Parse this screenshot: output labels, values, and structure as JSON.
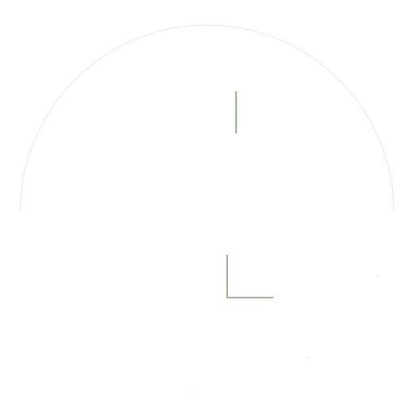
{
  "colors": {
    "background": "#ffffff",
    "circle_outline": "#e6e6e6",
    "marks": "#4f8a45",
    "specks": "#cfcfcf"
  },
  "icons": {
    "circle": "circle-outline-icon",
    "upper_mark": "vertical-line-icon",
    "corner_mark": "l-shaped-corner-icon"
  }
}
